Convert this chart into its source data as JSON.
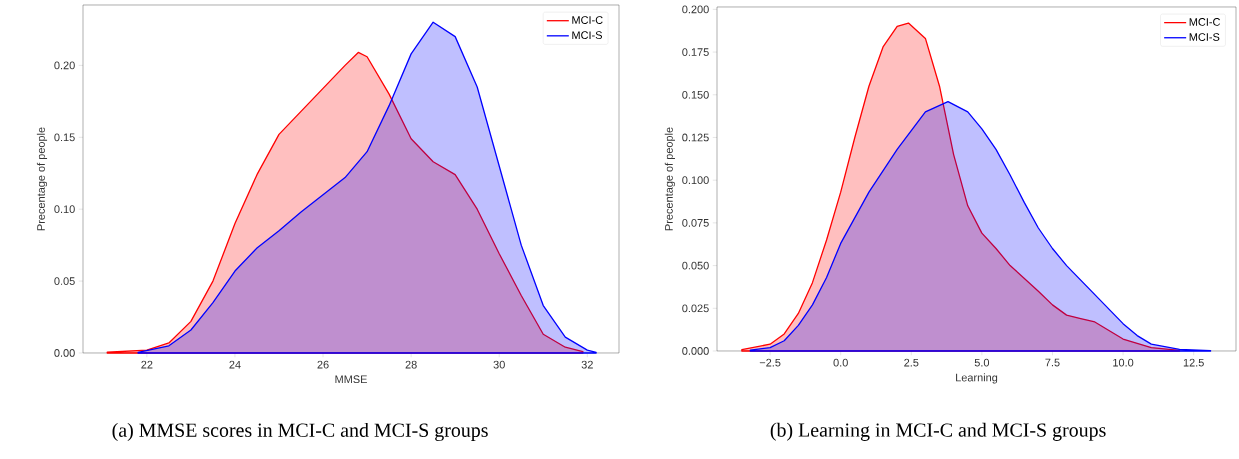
{
  "chart_data": [
    {
      "type": "area",
      "xlabel": "MMSE",
      "ylabel": "Precentage of people",
      "legend": "top right",
      "annotations": [
        "(a)  MMSE scores in MCI-C and MCI-S groups"
      ],
      "xlim": [
        20.55,
        32.72
      ],
      "ylim": [
        0,
        0.242
      ],
      "xticks": [
        22,
        24,
        26,
        28,
        30,
        32
      ],
      "yticks": [
        {
          "value": 0,
          "label": "0.00"
        },
        {
          "value": 0.05,
          "label": "0.05"
        },
        {
          "value": 0.1,
          "label": "0.10"
        },
        {
          "value": 0.15,
          "label": "0.15"
        },
        {
          "value": 0.2,
          "label": "0.20"
        }
      ],
      "series": [
        {
          "name": "MCI-C",
          "color": "#ff0000",
          "x": [
            21.1,
            22,
            22.5,
            23,
            23.5,
            24,
            24.5,
            25,
            25.5,
            26,
            26.5,
            26.8,
            27,
            27.5,
            28,
            28.5,
            29,
            29.5,
            30,
            30.5,
            31,
            31.5,
            31.9
          ],
          "values": [
            0.0005,
            0.002,
            0.007,
            0.022,
            0.05,
            0.09,
            0.124,
            0.152,
            0.168,
            0.184,
            0.2,
            0.209,
            0.206,
            0.18,
            0.149,
            0.133,
            0.124,
            0.1,
            0.069,
            0.04,
            0.013,
            0.004,
            0.001
          ]
        },
        {
          "name": "MCI-S",
          "color": "#0000ff",
          "x": [
            21.8,
            22.5,
            23,
            23.5,
            24,
            24.5,
            25,
            25.5,
            26,
            26.5,
            27,
            27.5,
            28,
            28.5,
            29,
            29.5,
            30,
            30.5,
            31,
            31.5,
            32,
            32.2
          ],
          "values": [
            0.0005,
            0.005,
            0.016,
            0.035,
            0.057,
            0.073,
            0.085,
            0.098,
            0.11,
            0.122,
            0.14,
            0.172,
            0.208,
            0.23,
            0.22,
            0.185,
            0.13,
            0.075,
            0.033,
            0.011,
            0.002,
            0.0005
          ]
        }
      ]
    },
    {
      "type": "area",
      "xlabel": "Learning",
      "ylabel": "Precentage of people",
      "legend": "top right",
      "annotations": [
        "(b)  Learning in MCI-C and MCI-S groups"
      ],
      "xlim": [
        -4.38,
        14.0
      ],
      "ylim": [
        0,
        0.2014
      ],
      "xticks": [
        {
          "value": -2.5,
          "label": "−2.5"
        },
        {
          "value": 0,
          "label": "0.0"
        },
        {
          "value": 2.5,
          "label": "2.5"
        },
        {
          "value": 5,
          "label": "5.0"
        },
        {
          "value": 7.5,
          "label": "7.5"
        },
        {
          "value": 10,
          "label": "10.0"
        },
        {
          "value": 12.5,
          "label": "12.5"
        }
      ],
      "yticks": [
        {
          "value": 0,
          "label": "0.000"
        },
        {
          "value": 0.025,
          "label": "0.025"
        },
        {
          "value": 0.05,
          "label": "0.050"
        },
        {
          "value": 0.075,
          "label": "0.075"
        },
        {
          "value": 0.1,
          "label": "0.100"
        },
        {
          "value": 0.125,
          "label": "0.125"
        },
        {
          "value": 0.15,
          "label": "0.150"
        },
        {
          "value": 0.175,
          "label": "0.175"
        },
        {
          "value": 0.2,
          "label": "0.200"
        }
      ],
      "series": [
        {
          "name": "MCI-C",
          "color": "#ff0000",
          "x": [
            -3.5,
            -2.5,
            -2,
            -1.5,
            -1,
            -0.5,
            0,
            0.5,
            1,
            1.5,
            2,
            2.4,
            3,
            3.5,
            4,
            4.5,
            5,
            5.5,
            6,
            7,
            7.5,
            8,
            8.5,
            9,
            9.5,
            10,
            11,
            12
          ],
          "values": [
            0.0008,
            0.004,
            0.01,
            0.022,
            0.04,
            0.065,
            0.093,
            0.125,
            0.155,
            0.178,
            0.19,
            0.192,
            0.183,
            0.155,
            0.115,
            0.085,
            0.069,
            0.06,
            0.05,
            0.035,
            0.027,
            0.021,
            0.019,
            0.017,
            0.012,
            0.007,
            0.002,
            0.0003
          ]
        },
        {
          "name": "MCI-S",
          "color": "#0000ff",
          "x": [
            -3.2,
            -2.5,
            -2,
            -1.5,
            -1,
            -0.5,
            0,
            1,
            2,
            3,
            3.8,
            4.5,
            5,
            5.5,
            6,
            6.5,
            7,
            7.5,
            8,
            9,
            10,
            10.5,
            11,
            12,
            13.1
          ],
          "values": [
            0.0005,
            0.002,
            0.006,
            0.015,
            0.027,
            0.043,
            0.063,
            0.093,
            0.118,
            0.14,
            0.146,
            0.14,
            0.13,
            0.118,
            0.103,
            0.087,
            0.072,
            0.06,
            0.05,
            0.033,
            0.016,
            0.009,
            0.004,
            0.001,
            0.0002
          ]
        }
      ]
    }
  ]
}
